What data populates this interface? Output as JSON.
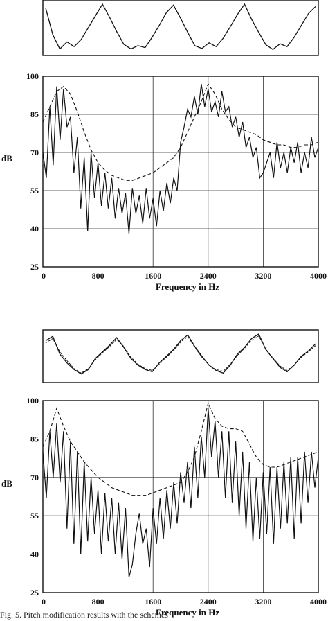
{
  "figure_caption": "Fig. 5. Pitch modification results with the schemes",
  "chart_data": [
    {
      "type": "line",
      "subtype": "waveform",
      "title": "",
      "xlabel": "",
      "ylabel": "",
      "grid": false,
      "periods_visible": 4,
      "series": [
        {
          "style": "solid",
          "values": [
            0.92,
            0.35,
            0.05,
            0.2,
            0.1,
            0.25,
            0.5,
            0.75,
            1.0,
            0.72,
            0.42,
            0.15,
            0.05,
            0.12,
            0.08,
            0.3,
            0.55,
            0.82,
            0.98,
            0.7,
            0.4,
            0.12,
            0.06,
            0.18,
            0.1,
            0.28,
            0.52,
            0.78,
            1.0,
            0.68,
            0.4,
            0.14,
            0.04,
            0.16,
            0.1,
            0.3,
            0.55,
            0.8,
            0.95
          ]
        }
      ]
    },
    {
      "type": "line",
      "title": "",
      "xlabel": "Frequency in Hz",
      "ylabel": "dB",
      "xlim": [
        0,
        4000
      ],
      "ylim": [
        25,
        100
      ],
      "xticks": [
        "0",
        "800",
        "1600",
        "2400",
        "3200",
        "4000"
      ],
      "yticks": [
        "25",
        "40",
        "55",
        "70",
        "85",
        "100"
      ],
      "grid": true,
      "series": [
        {
          "style": "solid",
          "x": [
            0,
            50,
            100,
            150,
            200,
            250,
            300,
            350,
            400,
            450,
            500,
            550,
            600,
            650,
            700,
            750,
            800,
            850,
            900,
            950,
            1000,
            1050,
            1100,
            1150,
            1200,
            1250,
            1300,
            1350,
            1400,
            1450,
            1500,
            1550,
            1600,
            1650,
            1700,
            1750,
            1800,
            1850,
            1900,
            1950,
            2000,
            2050,
            2100,
            2150,
            2200,
            2250,
            2300,
            2350,
            2400,
            2450,
            2500,
            2550,
            2600,
            2650,
            2700,
            2750,
            2800,
            2850,
            2900,
            2950,
            3000,
            3050,
            3100,
            3150,
            3200,
            3250,
            3300,
            3350,
            3400,
            3450,
            3500,
            3550,
            3600,
            3650,
            3700,
            3750,
            3800,
            3850,
            3900,
            3950,
            4000
          ],
          "y": [
            70,
            60,
            88,
            65,
            96,
            75,
            95,
            80,
            84,
            62,
            76,
            48,
            68,
            39,
            70,
            52,
            66,
            49,
            62,
            48,
            60,
            44,
            56,
            46,
            54,
            38,
            56,
            46,
            53,
            42,
            56,
            44,
            52,
            41,
            55,
            47,
            58,
            50,
            60,
            55,
            74,
            80,
            87,
            84,
            92,
            85,
            97,
            88,
            95,
            86,
            90,
            84,
            94,
            86,
            88,
            80,
            84,
            76,
            82,
            72,
            76,
            68,
            72,
            60,
            62,
            66,
            70,
            60,
            74,
            64,
            70,
            62,
            72,
            66,
            74,
            62,
            70,
            64,
            76,
            68,
            72
          ]
        },
        {
          "style": "dashed",
          "x": [
            0,
            100,
            200,
            300,
            400,
            500,
            600,
            700,
            800,
            900,
            1000,
            1100,
            1200,
            1300,
            1400,
            1500,
            1600,
            1700,
            1800,
            1900,
            2000,
            2100,
            2200,
            2300,
            2400,
            2500,
            2600,
            2700,
            2800,
            2900,
            3000,
            3100,
            3200,
            3300,
            3400,
            3500,
            3600,
            3700,
            3800,
            3900,
            4000
          ],
          "y": [
            82,
            88,
            94,
            96,
            93,
            86,
            78,
            71,
            66,
            63,
            61,
            60,
            59,
            59,
            60,
            61,
            62,
            64,
            66,
            68,
            72,
            78,
            84,
            90,
            97,
            93,
            87,
            83,
            80,
            79,
            78,
            77,
            75,
            74,
            73,
            73,
            72,
            72,
            73,
            73,
            74
          ]
        }
      ]
    },
    {
      "type": "line",
      "subtype": "waveform",
      "title": "",
      "xlabel": "",
      "ylabel": "",
      "grid": false,
      "periods_visible": 4,
      "series": [
        {
          "style": "solid",
          "values": [
            0.85,
            0.95,
            0.55,
            0.35,
            0.2,
            0.1,
            0.2,
            0.45,
            0.6,
            0.75,
            0.92,
            0.7,
            0.45,
            0.3,
            0.2,
            0.15,
            0.35,
            0.5,
            0.65,
            0.85,
            0.98,
            0.72,
            0.5,
            0.3,
            0.18,
            0.12,
            0.3,
            0.55,
            0.7,
            0.9,
            1.0,
            0.65,
            0.45,
            0.25,
            0.15,
            0.3,
            0.5,
            0.62,
            0.78
          ]
        },
        {
          "style": "dashed",
          "values": [
            0.8,
            0.9,
            0.6,
            0.4,
            0.22,
            0.12,
            0.22,
            0.42,
            0.58,
            0.72,
            0.88,
            0.72,
            0.48,
            0.32,
            0.22,
            0.18,
            0.32,
            0.48,
            0.62,
            0.82,
            0.94,
            0.7,
            0.48,
            0.3,
            0.2,
            0.16,
            0.32,
            0.52,
            0.68,
            0.86,
            0.96,
            0.66,
            0.46,
            0.28,
            0.18,
            0.3,
            0.48,
            0.6,
            0.74
          ]
        }
      ]
    },
    {
      "type": "line",
      "title": "",
      "xlabel": "Frequency in Hz",
      "ylabel": "dB",
      "xlim": [
        0,
        4000
      ],
      "ylim": [
        25,
        100
      ],
      "xticks": [
        "0",
        "800",
        "1600",
        "2400",
        "3200",
        "4000"
      ],
      "yticks": [
        "25",
        "40",
        "55",
        "70",
        "85",
        "100"
      ],
      "grid": true,
      "series": [
        {
          "style": "solid",
          "x": [
            0,
            50,
            100,
            150,
            200,
            250,
            300,
            350,
            400,
            450,
            500,
            550,
            600,
            650,
            700,
            750,
            800,
            850,
            900,
            950,
            1000,
            1050,
            1100,
            1150,
            1200,
            1250,
            1300,
            1350,
            1400,
            1450,
            1500,
            1550,
            1600,
            1650,
            1700,
            1750,
            1800,
            1850,
            1900,
            1950,
            2000,
            2050,
            2100,
            2150,
            2200,
            2250,
            2300,
            2350,
            2400,
            2450,
            2500,
            2550,
            2600,
            2650,
            2700,
            2750,
            2800,
            2850,
            2900,
            2950,
            3000,
            3050,
            3100,
            3150,
            3200,
            3250,
            3300,
            3350,
            3400,
            3450,
            3500,
            3550,
            3600,
            3650,
            3700,
            3750,
            3800,
            3850,
            3900,
            3950,
            4000
          ],
          "y": [
            80,
            62,
            88,
            70,
            91,
            68,
            88,
            50,
            84,
            44,
            80,
            40,
            76,
            45,
            70,
            48,
            65,
            40,
            64,
            45,
            62,
            40,
            60,
            38,
            58,
            31,
            36,
            48,
            56,
            44,
            50,
            35,
            58,
            44,
            62,
            46,
            65,
            50,
            68,
            52,
            72,
            60,
            76,
            58,
            82,
            62,
            86,
            70,
            97,
            78,
            92,
            70,
            88,
            62,
            88,
            60,
            84,
            55,
            80,
            50,
            76,
            45,
            70,
            46,
            72,
            48,
            74,
            44,
            74,
            50,
            76,
            52,
            78,
            46,
            78,
            52,
            80,
            60,
            80,
            66,
            78
          ]
        },
        {
          "style": "dashed",
          "x": [
            0,
            100,
            200,
            300,
            400,
            500,
            600,
            700,
            800,
            900,
            1000,
            1100,
            1200,
            1300,
            1400,
            1500,
            1600,
            1700,
            1800,
            1900,
            2000,
            2100,
            2200,
            2300,
            2400,
            2500,
            2600,
            2700,
            2800,
            2900,
            3000,
            3100,
            3200,
            3300,
            3400,
            3500,
            3600,
            3700,
            3800,
            3900,
            4000
          ],
          "y": [
            82,
            88,
            97,
            90,
            84,
            80,
            76,
            73,
            70,
            68,
            66,
            65,
            64,
            63,
            63,
            63,
            64,
            65,
            66,
            67,
            68,
            72,
            78,
            88,
            99,
            93,
            90,
            89,
            89,
            88,
            83,
            78,
            75,
            74,
            74,
            75,
            76,
            77,
            78,
            79,
            80
          ]
        }
      ]
    }
  ]
}
